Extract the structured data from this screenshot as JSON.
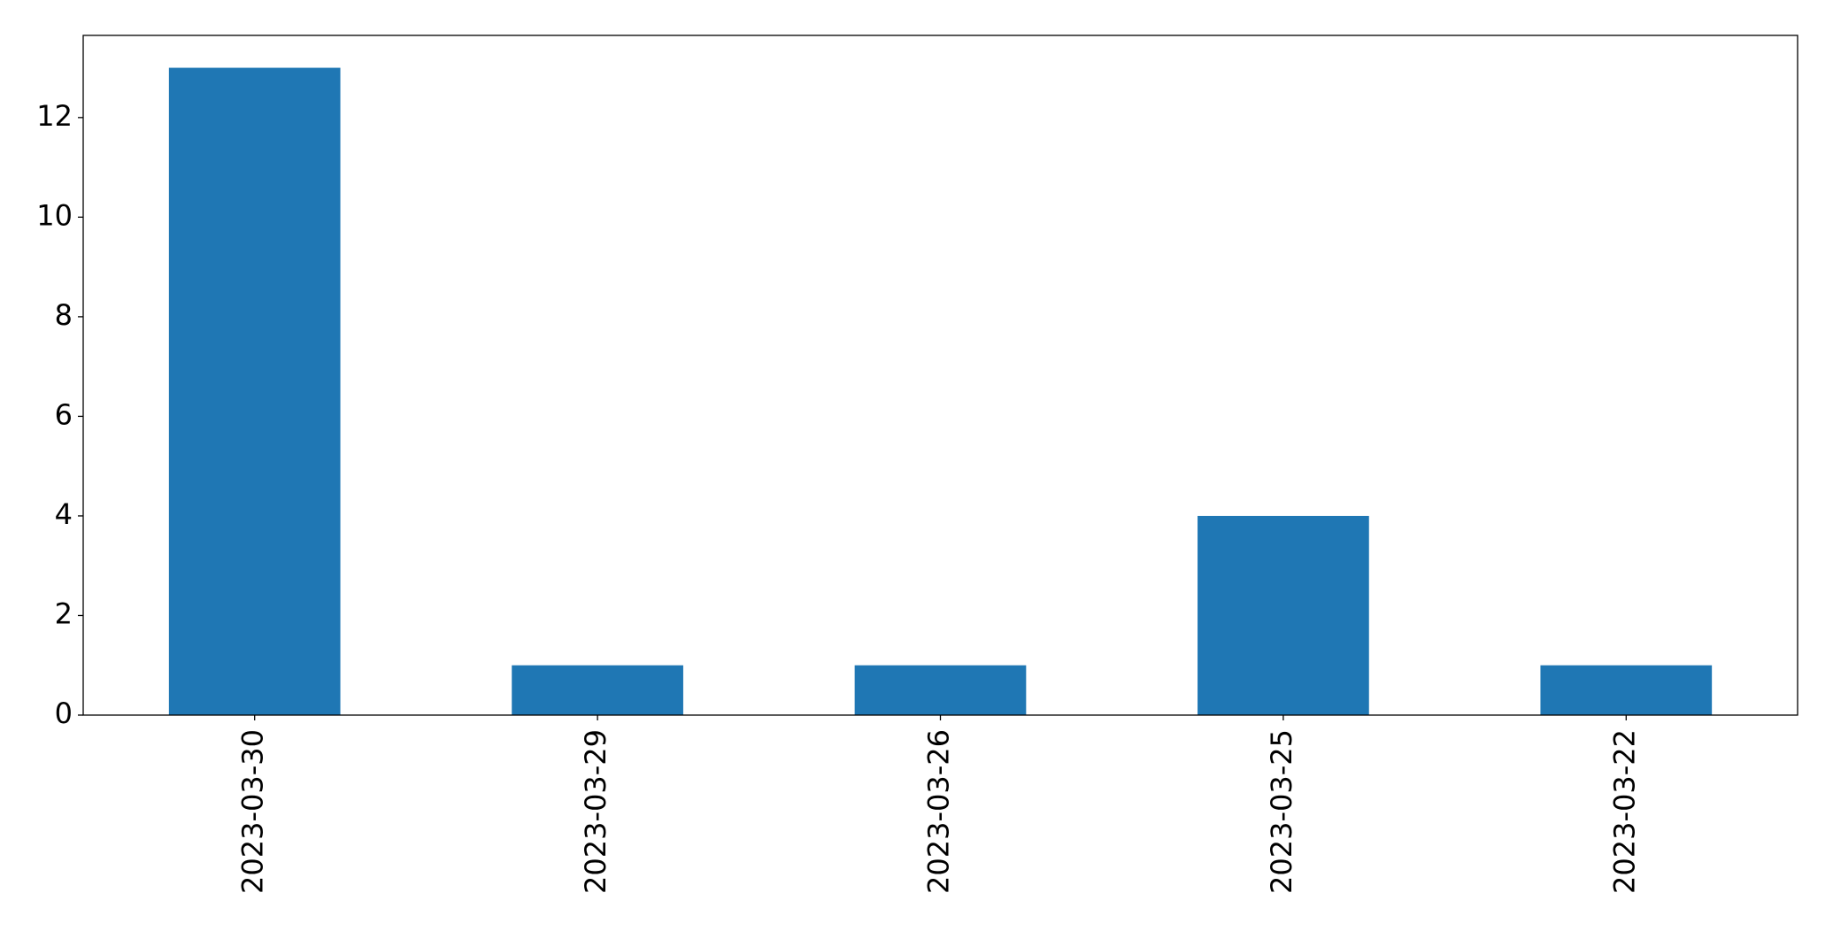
{
  "chart_data": {
    "type": "bar",
    "categories": [
      "2023-03-30",
      "2023-03-29",
      "2023-03-26",
      "2023-03-25",
      "2023-03-22"
    ],
    "values": [
      13,
      1,
      1,
      4,
      1
    ],
    "color": "#1f77b4",
    "ylim": [
      0,
      13.65
    ],
    "yticks": [
      0,
      2,
      4,
      6,
      8,
      10,
      12
    ]
  }
}
